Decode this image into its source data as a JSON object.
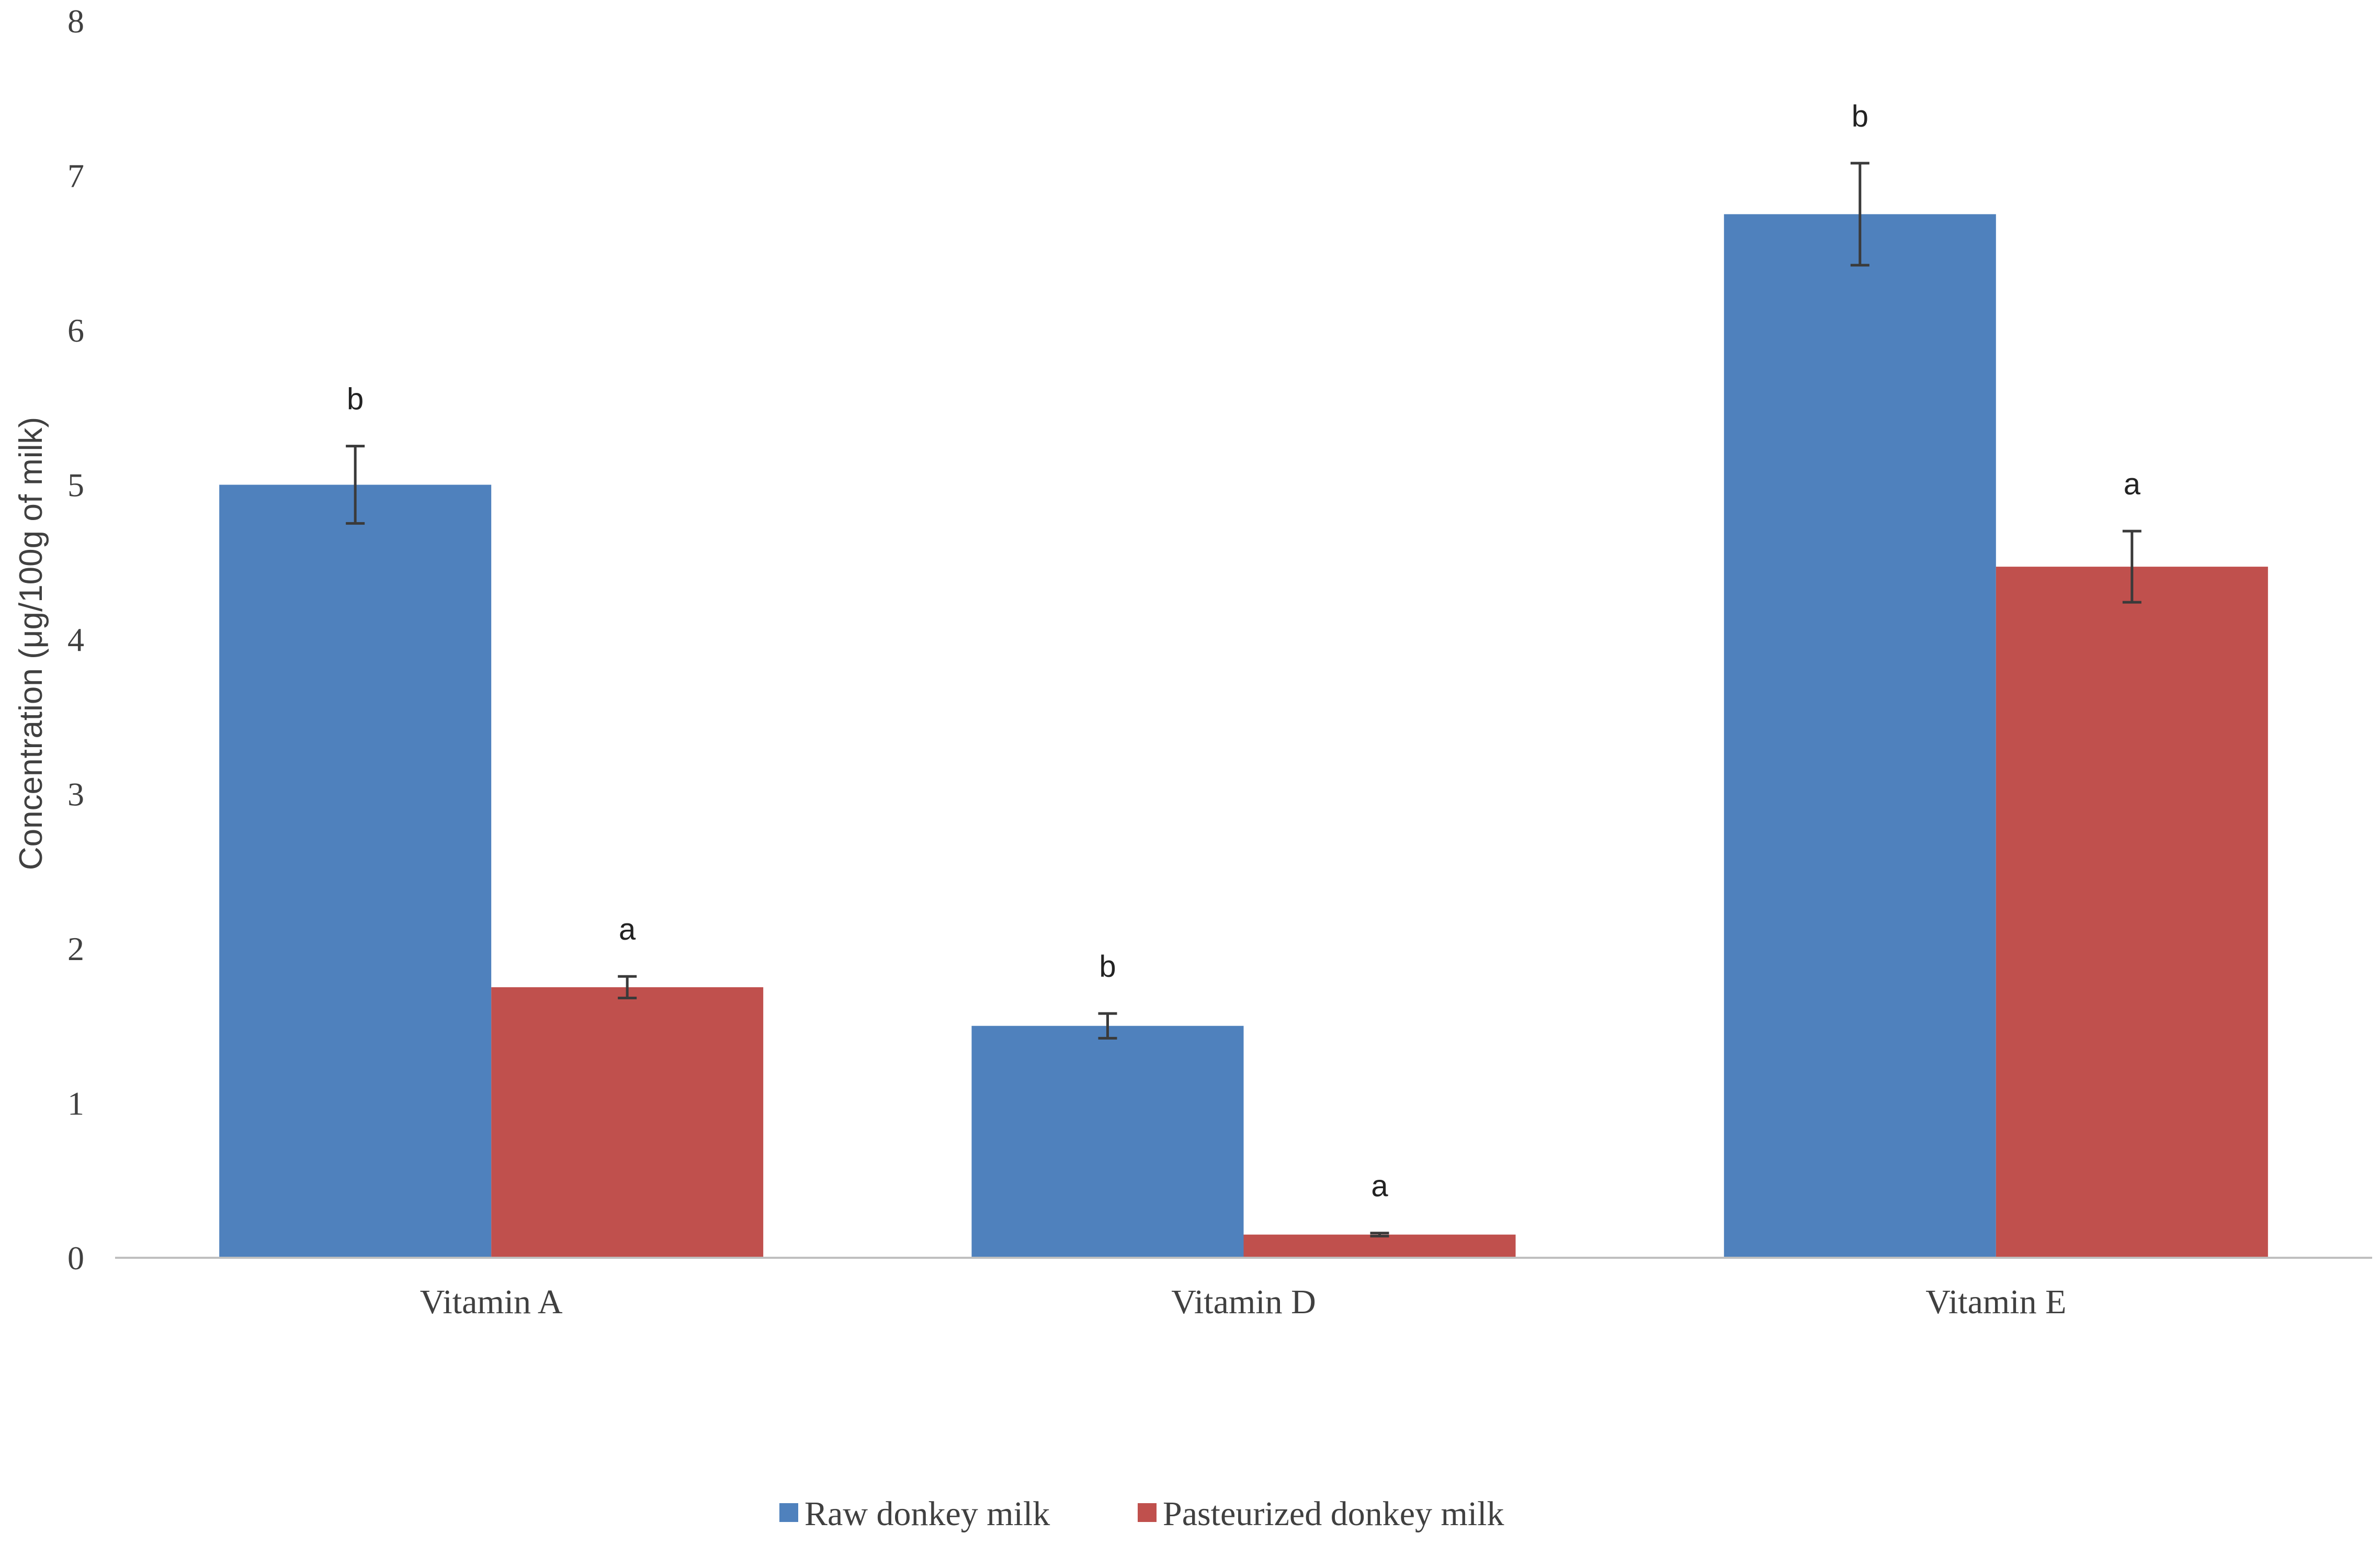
{
  "chart_data": {
    "type": "bar",
    "title": "",
    "xlabel": "",
    "ylabel": "Concentration (μg/100g of milk)",
    "ylim": [
      0,
      8
    ],
    "yticks": [
      0,
      1,
      2,
      3,
      4,
      5,
      6,
      7,
      8
    ],
    "grid": false,
    "legend_position": "bottom-center",
    "categories": [
      "Vitamin A",
      "Vitamin D",
      "Vitamin E"
    ],
    "series": [
      {
        "name": "Raw donkey milk",
        "color": "#4f81bd",
        "values": [
          5.0,
          1.5,
          6.75
        ],
        "errors": [
          0.25,
          0.08,
          0.33
        ],
        "letters": [
          "b",
          "b",
          "b"
        ]
      },
      {
        "name": "Pasteurized donkey milk",
        "color": "#c0504d",
        "values": [
          1.75,
          0.15,
          4.47
        ],
        "errors": [
          0.07,
          0.01,
          0.23
        ],
        "letters": [
          "a",
          "a",
          "a"
        ]
      }
    ]
  }
}
